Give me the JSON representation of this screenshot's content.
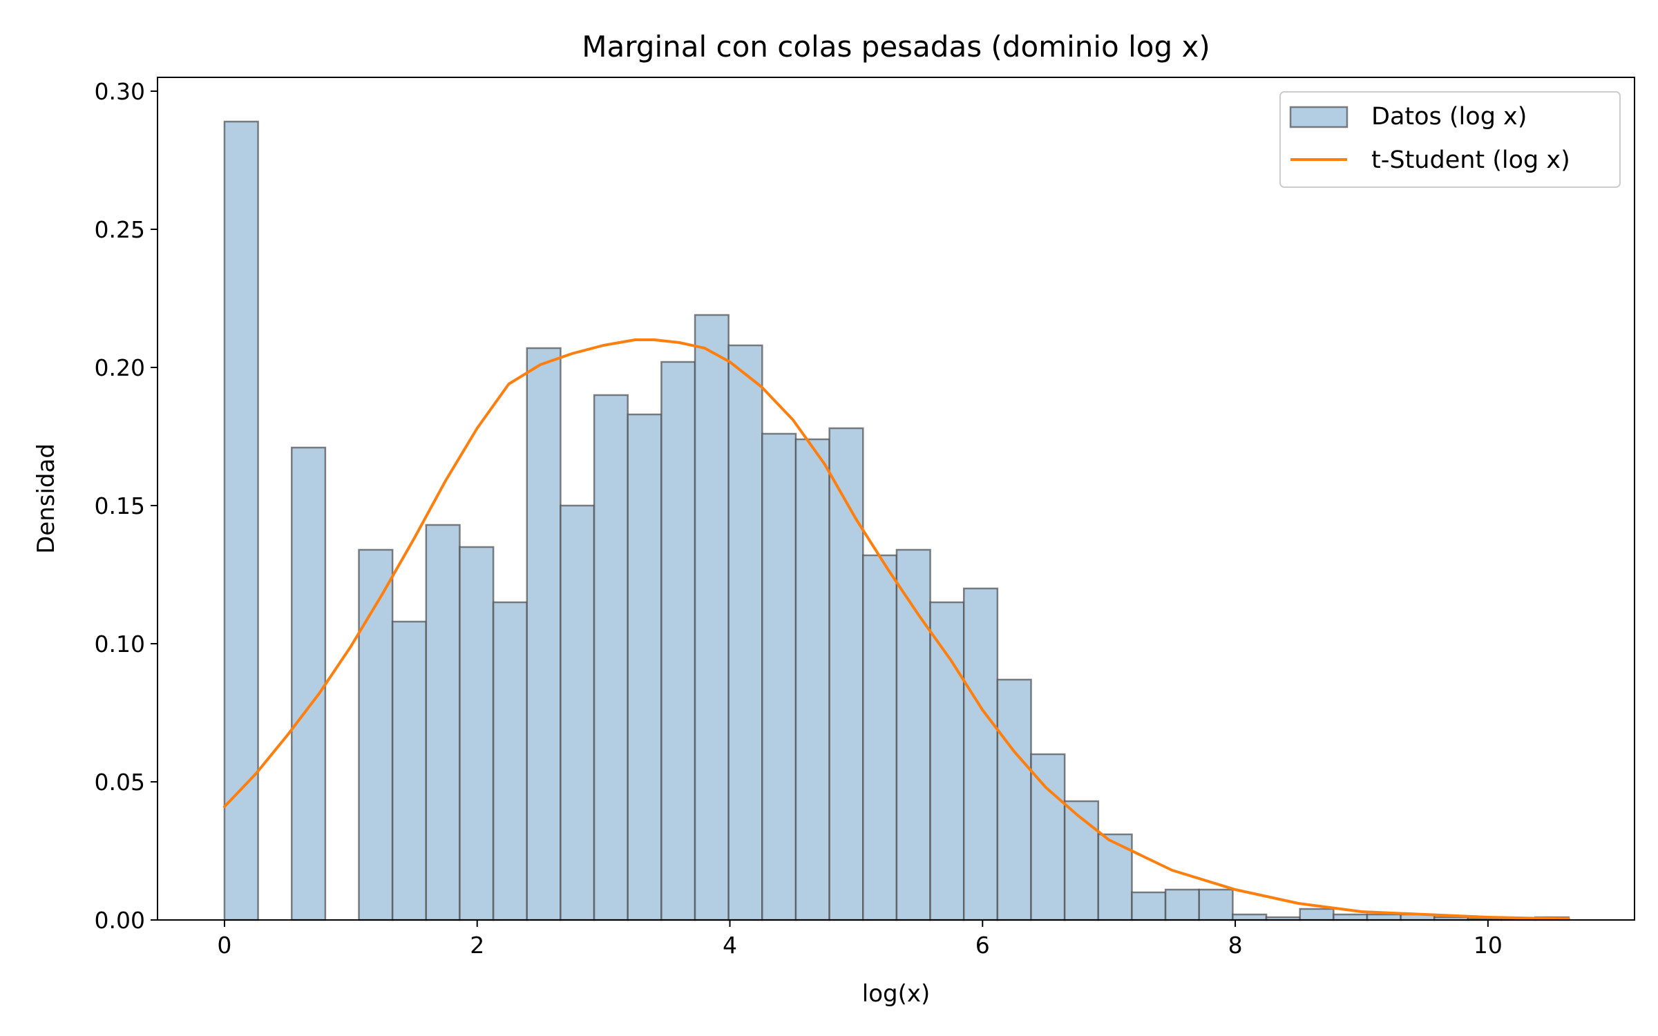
{
  "chart_data": {
    "type": "bar",
    "title": "Marginal con colas pesadas (dominio log x)",
    "xlabel": "log(x)",
    "ylabel": "Densidad",
    "xlim": [
      -0.53,
      11.16
    ],
    "ylim": [
      0,
      0.305
    ],
    "xticks": [
      0,
      2,
      4,
      6,
      8,
      10
    ],
    "yticks": [
      0.0,
      0.05,
      0.1,
      0.15,
      0.2,
      0.25,
      0.3
    ],
    "grid": false,
    "legend_position": "top-right",
    "bin_width": 0.266,
    "bins": [
      {
        "x0": 0.0,
        "value": 0.289
      },
      {
        "x0": 0.266,
        "value": 0
      },
      {
        "x0": 0.532,
        "value": 0.171
      },
      {
        "x0": 0.798,
        "value": 0
      },
      {
        "x0": 1.064,
        "value": 0.134
      },
      {
        "x0": 1.33,
        "value": 0.108
      },
      {
        "x0": 1.596,
        "value": 0.143
      },
      {
        "x0": 1.862,
        "value": 0.135
      },
      {
        "x0": 2.128,
        "value": 0.115
      },
      {
        "x0": 2.394,
        "value": 0.207
      },
      {
        "x0": 2.66,
        "value": 0.15
      },
      {
        "x0": 2.926,
        "value": 0.19
      },
      {
        "x0": 3.192,
        "value": 0.183
      },
      {
        "x0": 3.458,
        "value": 0.202
      },
      {
        "x0": 3.724,
        "value": 0.219
      },
      {
        "x0": 3.99,
        "value": 0.208
      },
      {
        "x0": 4.256,
        "value": 0.176
      },
      {
        "x0": 4.522,
        "value": 0.174
      },
      {
        "x0": 4.788,
        "value": 0.178
      },
      {
        "x0": 5.054,
        "value": 0.132
      },
      {
        "x0": 5.32,
        "value": 0.134
      },
      {
        "x0": 5.586,
        "value": 0.115
      },
      {
        "x0": 5.852,
        "value": 0.12
      },
      {
        "x0": 6.118,
        "value": 0.087
      },
      {
        "x0": 6.384,
        "value": 0.06
      },
      {
        "x0": 6.65,
        "value": 0.043
      },
      {
        "x0": 6.916,
        "value": 0.031
      },
      {
        "x0": 7.182,
        "value": 0.01
      },
      {
        "x0": 7.448,
        "value": 0.011
      },
      {
        "x0": 7.714,
        "value": 0.011
      },
      {
        "x0": 7.98,
        "value": 0.002
      },
      {
        "x0": 8.246,
        "value": 0.001
      },
      {
        "x0": 8.512,
        "value": 0.004
      },
      {
        "x0": 8.778,
        "value": 0.002
      },
      {
        "x0": 9.044,
        "value": 0.002
      },
      {
        "x0": 9.31,
        "value": 0.002
      },
      {
        "x0": 9.576,
        "value": 0.001
      },
      {
        "x0": 9.842,
        "value": 0.0005
      },
      {
        "x0": 10.108,
        "value": 0.0005
      },
      {
        "x0": 10.374,
        "value": 0.001
      }
    ],
    "series": [
      {
        "name": "Datos (log x)",
        "kind": "histogram",
        "fill": "#b3cde3",
        "edge": "#4d4d4d"
      },
      {
        "name": "t-Student (log x)",
        "kind": "line",
        "color": "#ff7f0e",
        "x": [
          0.0,
          0.25,
          0.5,
          0.75,
          1.0,
          1.25,
          1.5,
          1.75,
          2.0,
          2.25,
          2.5,
          2.75,
          3.0,
          3.25,
          3.4,
          3.6,
          3.8,
          4.0,
          4.25,
          4.5,
          4.75,
          5.0,
          5.25,
          5.5,
          5.75,
          6.0,
          6.25,
          6.5,
          6.75,
          7.0,
          7.5,
          8.0,
          8.5,
          9.0,
          9.5,
          10.0,
          10.5,
          10.64
        ],
        "y": [
          0.041,
          0.053,
          0.067,
          0.082,
          0.099,
          0.118,
          0.138,
          0.159,
          0.178,
          0.194,
          0.201,
          0.205,
          0.208,
          0.21,
          0.21,
          0.209,
          0.207,
          0.202,
          0.193,
          0.181,
          0.165,
          0.145,
          0.127,
          0.11,
          0.094,
          0.076,
          0.061,
          0.048,
          0.038,
          0.029,
          0.018,
          0.011,
          0.006,
          0.003,
          0.002,
          0.001,
          0.0005,
          0.0004
        ]
      }
    ]
  }
}
